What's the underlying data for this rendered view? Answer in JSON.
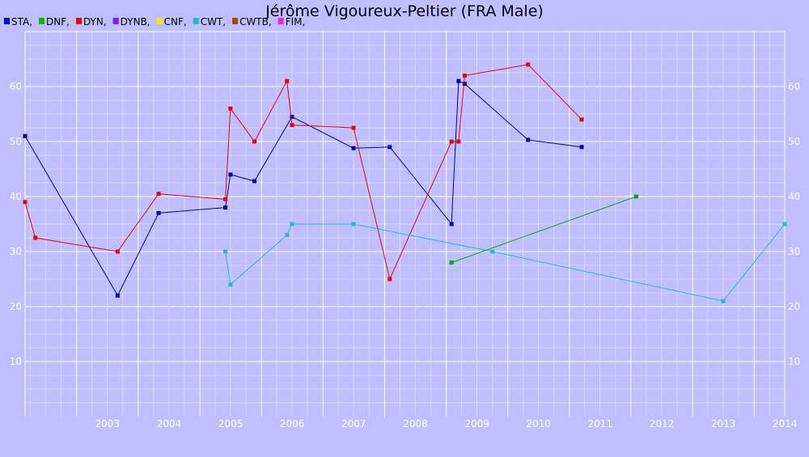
{
  "chart_data": {
    "type": "line",
    "title": "Jérôme Vigoureux-Peltier (FRA Male)",
    "xlabel": "",
    "ylabel": "",
    "x_axis_type": "date",
    "xlim": [
      "2002-03-01",
      "2014-07-01"
    ],
    "ylim": [
      0,
      70
    ],
    "grid": true,
    "legend_position": "top-left",
    "background_color": "#bfbfff",
    "x_ticks": [
      "2003",
      "2004",
      "2005",
      "2006",
      "2007",
      "2008",
      "2009",
      "2010",
      "2011",
      "2012",
      "2013",
      "2014"
    ],
    "y_ticks": [
      10,
      20,
      30,
      40,
      50,
      60
    ],
    "legend": [
      {
        "name": "STA,",
        "color": "#0000cc"
      },
      {
        "name": "DNF,",
        "color": "#00bb00"
      },
      {
        "name": "DYN,",
        "color": "#ee0000"
      },
      {
        "name": "DYNB,",
        "color": "#7a22ee"
      },
      {
        "name": "CNF,",
        "color": "#eeee00"
      },
      {
        "name": "CWT,",
        "color": "#22bbcc"
      },
      {
        "name": "CWTB,",
        "color": "#aa4400"
      },
      {
        "name": "FIM,",
        "color": "#ee22ee"
      }
    ],
    "series": [
      {
        "name": "STA",
        "color": "#0000aa",
        "points": [
          [
            "2002-03-01",
            51
          ],
          [
            "2003-09-01",
            22
          ],
          [
            "2004-05-01",
            37
          ],
          [
            "2005-06-01",
            38
          ],
          [
            "2005-07-01",
            44
          ],
          [
            "2005-11-20",
            42.8
          ],
          [
            "2006-07-01",
            54.5
          ],
          [
            "2007-07-01",
            48.8
          ],
          [
            "2008-02-01",
            49
          ],
          [
            "2009-02-01",
            35
          ],
          [
            "2009-03-15",
            61
          ],
          [
            "2009-04-20",
            60.5
          ],
          [
            "2010-05-01",
            50.3
          ],
          [
            "2011-03-15",
            49
          ]
        ]
      },
      {
        "name": "DNF",
        "color": "#00aa00",
        "points": [
          [
            "2009-02-01",
            28
          ],
          [
            "2012-02-01",
            40
          ]
        ]
      },
      {
        "name": "DYN",
        "color": "#ee0000",
        "points": [
          [
            "2002-03-01",
            39
          ],
          [
            "2002-05-01",
            32.5
          ],
          [
            "2003-09-01",
            30
          ],
          [
            "2004-05-01",
            40.5
          ],
          [
            "2005-06-01",
            39.5
          ],
          [
            "2005-07-01",
            56
          ],
          [
            "2005-11-20",
            50
          ],
          [
            "2006-06-01",
            61
          ],
          [
            "2006-07-01",
            53
          ],
          [
            "2007-07-01",
            52.5
          ],
          [
            "2008-02-01",
            25
          ],
          [
            "2009-02-01",
            50
          ],
          [
            "2009-03-15",
            50
          ],
          [
            "2009-04-20",
            62
          ],
          [
            "2010-05-01",
            64
          ],
          [
            "2011-03-15",
            54
          ]
        ]
      },
      {
        "name": "CWT",
        "color": "#22bbcc",
        "points": [
          [
            "2005-06-01",
            30
          ],
          [
            "2005-07-01",
            24
          ],
          [
            "2006-06-01",
            33
          ],
          [
            "2006-07-01",
            35
          ],
          [
            "2007-07-01",
            35
          ],
          [
            "2009-10-01",
            30
          ],
          [
            "2013-07-01",
            21
          ],
          [
            "2014-07-01",
            35
          ]
        ]
      }
    ]
  }
}
